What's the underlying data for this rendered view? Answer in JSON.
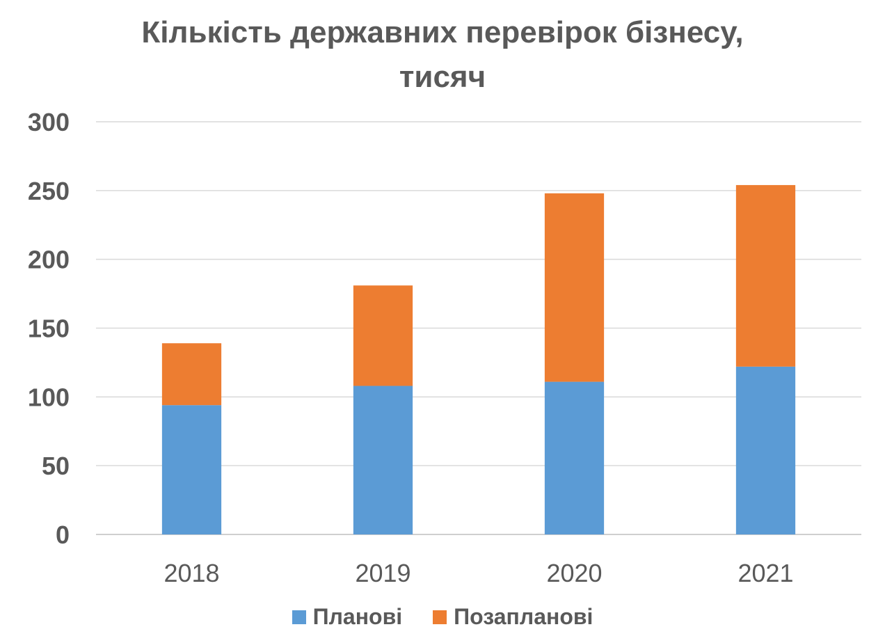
{
  "chart_data": {
    "type": "bar",
    "stacked": true,
    "title_lines": [
      "Кількість державних перевірок бізнесу,",
      "тисяч"
    ],
    "categories": [
      "2018",
      "2019",
      "2020",
      "2021"
    ],
    "series": [
      {
        "name": "Планові",
        "color": "#5B9BD5",
        "values": [
          94,
          108,
          111,
          122
        ]
      },
      {
        "name": "Позапланові",
        "color": "#ED7D31",
        "values": [
          45,
          73,
          137,
          132
        ]
      }
    ],
    "ylim": [
      0,
      300
    ],
    "yticks": [
      "0",
      "50",
      "100",
      "150",
      "200",
      "250",
      "300"
    ],
    "grid": true,
    "legend_position": "bottom",
    "xlabel": "",
    "ylabel": ""
  }
}
